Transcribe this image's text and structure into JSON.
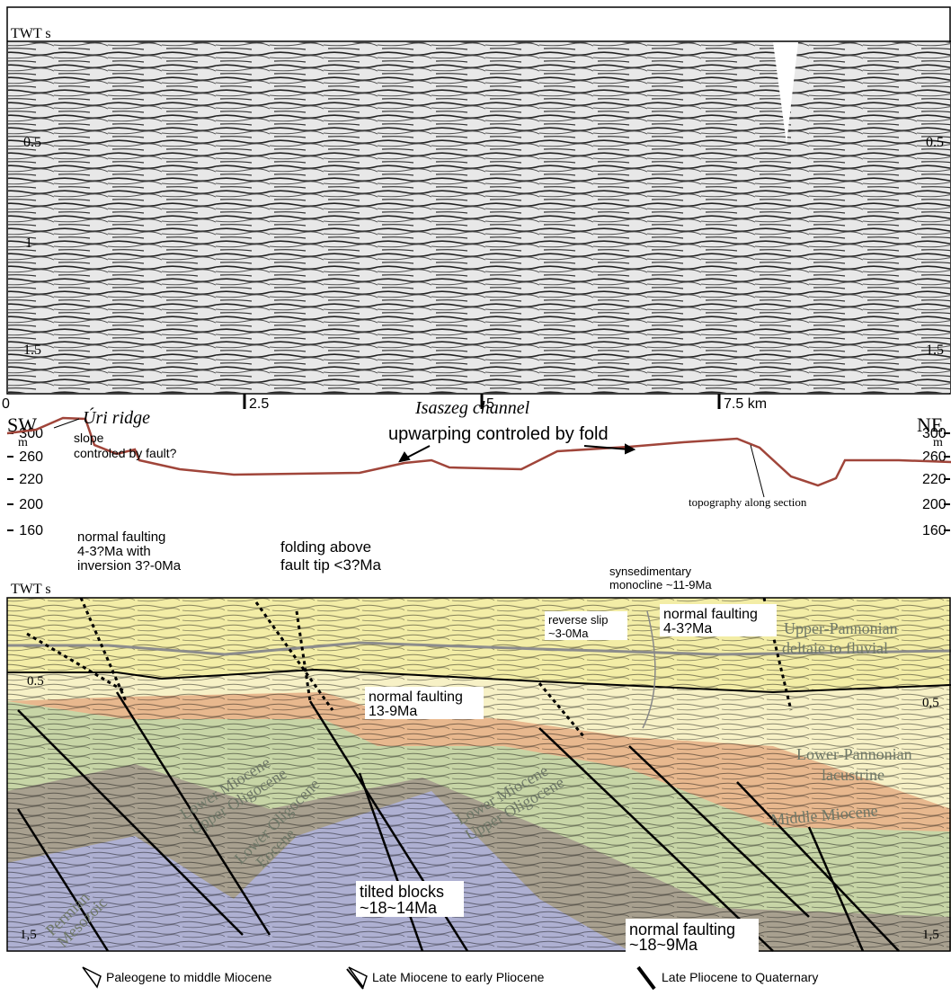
{
  "seismic_panel": {
    "axis_title": "TWT s",
    "left_ticks": [
      "0.5",
      "1",
      "1.5"
    ],
    "right_ticks": [
      "0.5",
      "1.5"
    ],
    "distance_ticks": [
      "0",
      "2.5",
      "5",
      "7.5 km"
    ]
  },
  "topography_panel": {
    "left_end": "SW",
    "right_end": "NE",
    "unit": "m",
    "ticks": [
      "300",
      "260",
      "220",
      "200",
      "160"
    ],
    "annotations": {
      "ridge": "Úri ridge",
      "slope": [
        "slope",
        "controled by fault?"
      ],
      "channel": "Isaszeg channel",
      "upwarping": "upwarping controled by fold",
      "topography": "topography along section",
      "faulting": [
        "normal faulting",
        "4-3?Ma with",
        "inversion 3?-0Ma"
      ],
      "folding": [
        "folding above",
        "fault tip <3?Ma"
      ],
      "monocline": [
        "synsedimentary",
        "monocline ~11-9Ma"
      ]
    }
  },
  "interpreted_panel": {
    "axis_title": "TWT s",
    "left_ticks": [
      "0.5",
      "1,5"
    ],
    "right_ticks": [
      "0,5",
      "1,5"
    ],
    "annotations": {
      "reverse": [
        "reverse slip",
        "~3-0Ma"
      ],
      "normal_young": [
        "normal faulting",
        "4-3?Ma"
      ],
      "normal_mid": [
        "normal faulting",
        "13-9Ma"
      ],
      "tilted": [
        "tilted blocks",
        "~18~14Ma"
      ],
      "normal_old": [
        "normal faulting",
        "~18~9Ma"
      ]
    },
    "units": {
      "upper_pannonian": [
        "Upper-Pannonian",
        "deltaie to fluvial"
      ],
      "lower_pannonian": [
        "Lower-Pannonian",
        "lacustrine"
      ],
      "miocene_left": [
        "Lower Miocene",
        "Upper Oligocene"
      ],
      "miocene_right": [
        "Lower Miocene",
        "Upper Oligocene"
      ],
      "oligocene": [
        "Lower Oligocene",
        "Eocene"
      ],
      "middle_miocene": "Middle Miocene",
      "permian": [
        "Permian",
        "Mesozoic"
      ]
    }
  },
  "legend": [
    "Paleogene to middle Miocene",
    "Late Miocene to early Pliocene",
    "Late Pliocene to Quaternary"
  ]
}
